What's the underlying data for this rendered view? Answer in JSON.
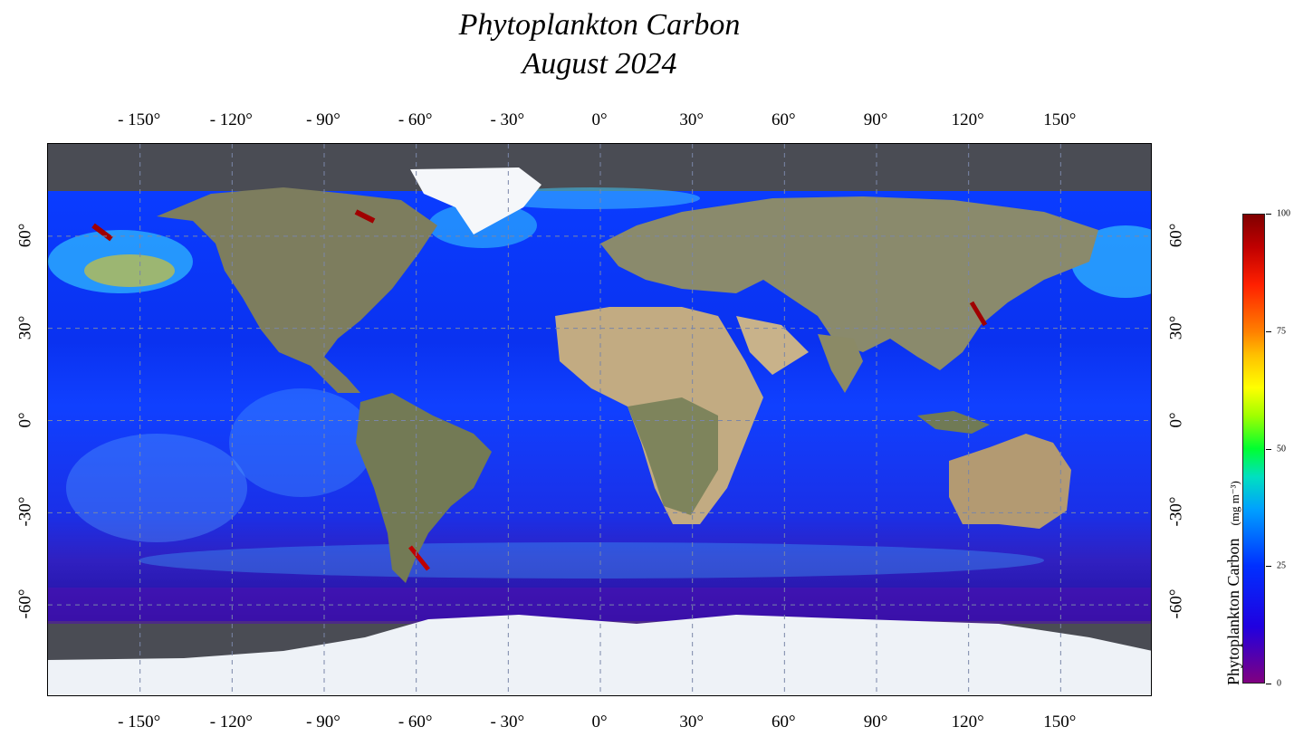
{
  "title": {
    "line1": "Phytoplankton Carbon",
    "line2": "August 2024"
  },
  "colorbar": {
    "label": "Phytoplankton Carbon",
    "units": "(mg m⁻³)",
    "ticks": [
      "0",
      "25",
      "50",
      "75",
      "100"
    ],
    "range": [
      0,
      100
    ],
    "colors": [
      "#800080",
      "#0030ff",
      "#00ff30",
      "#ffc000",
      "#800000"
    ]
  },
  "axes": {
    "lon_ticks": [
      "- 150°",
      "- 120°",
      "- 90°",
      "- 60°",
      "- 30°",
      "0°",
      "30°",
      "60°",
      "90°",
      "120°",
      "150°"
    ],
    "lat_ticks": [
      "60°",
      "30°",
      "0°",
      "-30°",
      "-60°"
    ],
    "lon_range": [
      -180,
      180
    ],
    "lat_range": [
      -90,
      90
    ],
    "grid": "dashed"
  },
  "colors": {
    "ocean_low": "#0020ff",
    "ocean_mid": "#0060ff",
    "land": "#7a7a5a",
    "desert": "#c9b28a",
    "ice": "#f4f6fa",
    "no_data": "#4a4c54"
  }
}
